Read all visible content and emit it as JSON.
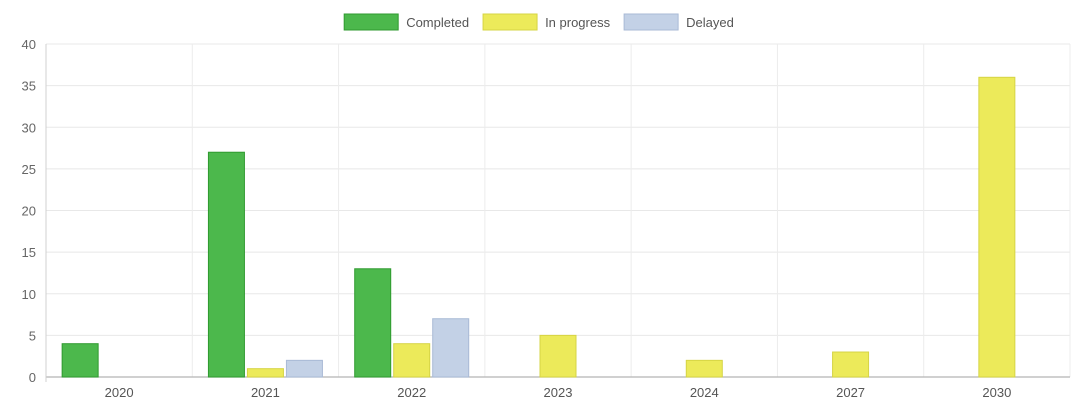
{
  "chart_data": {
    "type": "bar",
    "categories": [
      "2020",
      "2021",
      "2022",
      "2023",
      "2024",
      "2027",
      "2030"
    ],
    "series": [
      {
        "name": "Completed",
        "values": [
          4,
          27,
          13,
          0,
          0,
          0,
          0
        ],
        "color": "#4cb84c",
        "border_color": "#2f9a2f"
      },
      {
        "name": "In progress",
        "values": [
          0,
          1,
          4,
          5,
          2,
          3,
          36
        ],
        "color": "#ecea5a",
        "border_color": "#d6d444"
      },
      {
        "name": "Delayed",
        "values": [
          0,
          2,
          7,
          0,
          0,
          0,
          0
        ],
        "color": "#c3d1e6",
        "border_color": "#a9bad6"
      }
    ],
    "ylim": [
      0,
      40
    ],
    "yticks": [
      0,
      5,
      10,
      15,
      20,
      25,
      30,
      35,
      40
    ],
    "grid": true,
    "legend_position": "top-center",
    "title": "",
    "xlabel": "",
    "ylabel": ""
  }
}
